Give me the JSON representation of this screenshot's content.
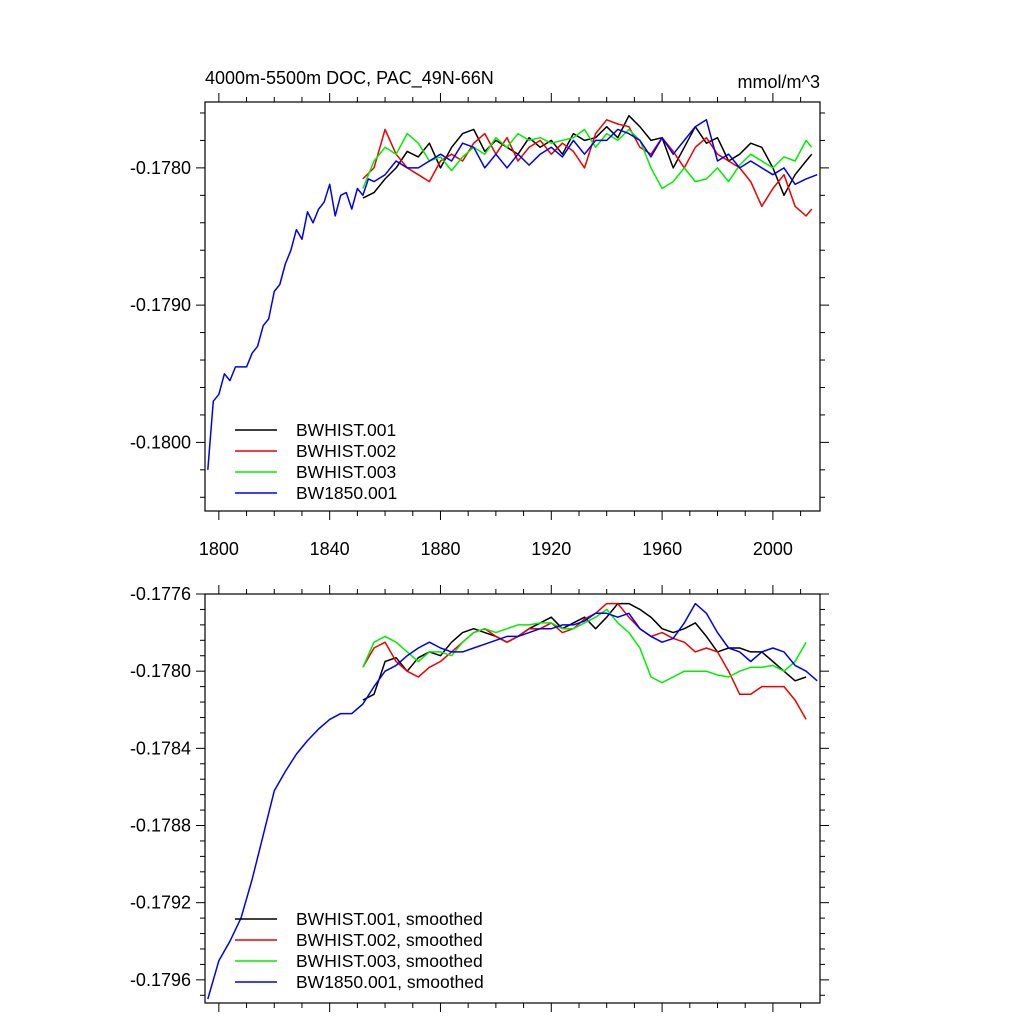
{
  "chart_data": [
    {
      "type": "line",
      "title": "4000m-5500m DOC, PAC_49N-66N",
      "units": "mmol/m^3",
      "xlim": [
        1795,
        2017
      ],
      "ylim": [
        -0.1805,
        -0.17752
      ],
      "x_ticks": [
        1800,
        1840,
        1880,
        1920,
        1960,
        2000
      ],
      "y_ticks": [
        -0.178,
        -0.179,
        -0.18
      ],
      "y_tick_labels": [
        "-0.1780",
        "-0.1790",
        "-0.1800"
      ],
      "x_tick_labels": [
        "1800",
        "1840",
        "1880",
        "1920",
        "1960",
        "2000"
      ],
      "legend": [
        "BWHIST.001",
        "BWHIST.002",
        "BWHIST.003",
        "BW1850.001"
      ],
      "legend_position": "bottom-left",
      "series": [
        {
          "name": "BWHIST.001",
          "color": "#000000",
          "x": [
            1852,
            1856,
            1860,
            1864,
            1868,
            1872,
            1876,
            1880,
            1884,
            1888,
            1892,
            1896,
            1900,
            1904,
            1908,
            1912,
            1916,
            1920,
            1924,
            1928,
            1932,
            1936,
            1940,
            1944,
            1948,
            1952,
            1956,
            1960,
            1964,
            1968,
            1972,
            1976,
            1980,
            1984,
            1988,
            1992,
            1996,
            2000,
            2004,
            2008,
            2012,
            2014
          ],
          "y": [
            -0.17822,
            -0.17818,
            -0.17808,
            -0.178,
            -0.17788,
            -0.17792,
            -0.17782,
            -0.178,
            -0.17785,
            -0.17775,
            -0.17772,
            -0.17788,
            -0.1778,
            -0.17785,
            -0.1779,
            -0.17778,
            -0.17785,
            -0.1778,
            -0.1779,
            -0.17775,
            -0.1778,
            -0.17778,
            -0.1777,
            -0.17778,
            -0.17762,
            -0.1777,
            -0.1778,
            -0.17778,
            -0.178,
            -0.17785,
            -0.1777,
            -0.17782,
            -0.17778,
            -0.17795,
            -0.1779,
            -0.17782,
            -0.17785,
            -0.178,
            -0.1782,
            -0.17805,
            -0.17795,
            -0.1779
          ]
        },
        {
          "name": "BWHIST.002",
          "color": "#ee0000",
          "x": [
            1852,
            1856,
            1860,
            1864,
            1868,
            1872,
            1876,
            1880,
            1884,
            1888,
            1892,
            1896,
            1900,
            1904,
            1908,
            1912,
            1916,
            1920,
            1924,
            1928,
            1932,
            1936,
            1940,
            1944,
            1948,
            1952,
            1956,
            1960,
            1964,
            1968,
            1972,
            1976,
            1980,
            1984,
            1988,
            1992,
            1996,
            2000,
            2004,
            2008,
            2012,
            2014
          ],
          "y": [
            -0.17808,
            -0.178,
            -0.17772,
            -0.1779,
            -0.178,
            -0.17805,
            -0.1781,
            -0.17795,
            -0.1779,
            -0.17795,
            -0.17782,
            -0.17775,
            -0.1779,
            -0.17778,
            -0.17795,
            -0.17785,
            -0.1778,
            -0.1779,
            -0.17782,
            -0.17788,
            -0.178,
            -0.17775,
            -0.17765,
            -0.17768,
            -0.1777,
            -0.17785,
            -0.1779,
            -0.17778,
            -0.17788,
            -0.178,
            -0.17785,
            -0.17778,
            -0.1779,
            -0.17795,
            -0.178,
            -0.1781,
            -0.17828,
            -0.17815,
            -0.17805,
            -0.17828,
            -0.17835,
            -0.1783
          ]
        },
        {
          "name": "BWHIST.003",
          "color": "#00ee00",
          "x": [
            1852,
            1856,
            1860,
            1864,
            1868,
            1872,
            1876,
            1880,
            1884,
            1888,
            1892,
            1896,
            1900,
            1904,
            1908,
            1912,
            1916,
            1920,
            1924,
            1928,
            1932,
            1936,
            1940,
            1944,
            1948,
            1952,
            1956,
            1960,
            1964,
            1968,
            1972,
            1976,
            1980,
            1984,
            1988,
            1992,
            1996,
            2000,
            2004,
            2008,
            2012,
            2014
          ],
          "y": [
            -0.17815,
            -0.17795,
            -0.17785,
            -0.1779,
            -0.17775,
            -0.17782,
            -0.17795,
            -0.17792,
            -0.17802,
            -0.17792,
            -0.17785,
            -0.1779,
            -0.17778,
            -0.17785,
            -0.17775,
            -0.1778,
            -0.17778,
            -0.17782,
            -0.1778,
            -0.17778,
            -0.17772,
            -0.17785,
            -0.17775,
            -0.1778,
            -0.17772,
            -0.1778,
            -0.178,
            -0.17815,
            -0.1781,
            -0.178,
            -0.1781,
            -0.17808,
            -0.178,
            -0.1781,
            -0.17798,
            -0.1779,
            -0.17795,
            -0.178,
            -0.17792,
            -0.17795,
            -0.1778,
            -0.17785
          ]
        },
        {
          "name": "BW1850.001",
          "color": "#0000ee",
          "x": [
            1796,
            1798,
            1800,
            1802,
            1804,
            1806,
            1808,
            1810,
            1812,
            1814,
            1816,
            1818,
            1820,
            1822,
            1824,
            1826,
            1828,
            1830,
            1832,
            1834,
            1836,
            1838,
            1840,
            1842,
            1844,
            1846,
            1848,
            1850,
            1852,
            1854,
            1856,
            1860,
            1864,
            1868,
            1872,
            1876,
            1880,
            1884,
            1888,
            1892,
            1896,
            1900,
            1904,
            1908,
            1912,
            1916,
            1920,
            1924,
            1928,
            1932,
            1936,
            1940,
            1944,
            1948,
            1952,
            1956,
            1960,
            1964,
            1968,
            1972,
            1976,
            1980,
            1984,
            1988,
            1992,
            1996,
            2000,
            2004,
            2008,
            2012,
            2016
          ],
          "y": [
            -0.1802,
            -0.1797,
            -0.17965,
            -0.1795,
            -0.17955,
            -0.17945,
            -0.17945,
            -0.17945,
            -0.17935,
            -0.1793,
            -0.17915,
            -0.1791,
            -0.1789,
            -0.17885,
            -0.1787,
            -0.1786,
            -0.17845,
            -0.17852,
            -0.17832,
            -0.1784,
            -0.1783,
            -0.17825,
            -0.17812,
            -0.17835,
            -0.1782,
            -0.17818,
            -0.1783,
            -0.17815,
            -0.1782,
            -0.17808,
            -0.1781,
            -0.17805,
            -0.17795,
            -0.178,
            -0.178,
            -0.17795,
            -0.1779,
            -0.17795,
            -0.17782,
            -0.17785,
            -0.178,
            -0.1779,
            -0.178,
            -0.1779,
            -0.17798,
            -0.1779,
            -0.17785,
            -0.17792,
            -0.1778,
            -0.1779,
            -0.1778,
            -0.1778,
            -0.17772,
            -0.17775,
            -0.1778,
            -0.17792,
            -0.17778,
            -0.1779,
            -0.1778,
            -0.1777,
            -0.17765,
            -0.17795,
            -0.1779,
            -0.178,
            -0.17795,
            -0.178,
            -0.17805,
            -0.178,
            -0.17812,
            -0.17808,
            -0.17805
          ]
        }
      ]
    },
    {
      "type": "line",
      "title": "",
      "xlim": [
        1795,
        2017
      ],
      "ylim": [
        -0.17972,
        -0.1776
      ],
      "x_ticks": [
        1800,
        1840,
        1880,
        1920,
        1960,
        2000
      ],
      "y_ticks": [
        -0.1776,
        -0.178,
        -0.1784,
        -0.1788,
        -0.1792,
        -0.1796
      ],
      "y_tick_labels": [
        "-0.1776",
        "-0.1780",
        "-0.1784",
        "-0.1788",
        "-0.1792",
        "-0.1796"
      ],
      "legend": [
        "BWHIST.001, smoothed",
        "BWHIST.002, smoothed",
        "BWHIST.003, smoothed",
        "BW1850.001, smoothed"
      ],
      "legend_position": "bottom-left",
      "series": [
        {
          "name": "BWHIST.001, smoothed",
          "color": "#000000",
          "x": [
            1852,
            1856,
            1860,
            1864,
            1868,
            1872,
            1876,
            1880,
            1884,
            1888,
            1892,
            1896,
            1900,
            1904,
            1908,
            1912,
            1916,
            1920,
            1924,
            1928,
            1932,
            1936,
            1940,
            1944,
            1948,
            1952,
            1956,
            1960,
            1964,
            1968,
            1972,
            1976,
            1980,
            1984,
            1988,
            1992,
            1996,
            2000,
            2004,
            2008,
            2012
          ],
          "y": [
            -0.17815,
            -0.17812,
            -0.17795,
            -0.17793,
            -0.178,
            -0.17793,
            -0.1779,
            -0.17792,
            -0.17785,
            -0.1778,
            -0.17778,
            -0.1778,
            -0.17782,
            -0.17785,
            -0.17782,
            -0.17778,
            -0.17775,
            -0.17772,
            -0.17778,
            -0.17775,
            -0.17772,
            -0.17778,
            -0.17772,
            -0.17765,
            -0.17765,
            -0.17768,
            -0.17772,
            -0.17778,
            -0.1778,
            -0.17778,
            -0.17775,
            -0.17782,
            -0.1779,
            -0.17788,
            -0.17788,
            -0.1779,
            -0.1779,
            -0.17795,
            -0.178,
            -0.17805,
            -0.17803
          ]
        },
        {
          "name": "BWHIST.002, smoothed",
          "color": "#ee0000",
          "x": [
            1852,
            1856,
            1860,
            1864,
            1868,
            1872,
            1876,
            1880,
            1884,
            1888,
            1892,
            1896,
            1900,
            1904,
            1908,
            1912,
            1916,
            1920,
            1924,
            1928,
            1932,
            1936,
            1940,
            1944,
            1948,
            1952,
            1956,
            1960,
            1964,
            1968,
            1972,
            1976,
            1980,
            1984,
            1988,
            1992,
            1996,
            2000,
            2004,
            2008,
            2012
          ],
          "y": [
            -0.17798,
            -0.17788,
            -0.17785,
            -0.17795,
            -0.178,
            -0.17803,
            -0.17798,
            -0.17795,
            -0.1779,
            -0.17785,
            -0.1778,
            -0.17778,
            -0.17782,
            -0.17785,
            -0.17782,
            -0.17778,
            -0.17778,
            -0.17775,
            -0.1778,
            -0.17778,
            -0.17773,
            -0.1777,
            -0.17765,
            -0.17765,
            -0.17772,
            -0.17778,
            -0.17782,
            -0.1778,
            -0.17783,
            -0.17785,
            -0.1779,
            -0.17788,
            -0.1779,
            -0.178,
            -0.17812,
            -0.17812,
            -0.17808,
            -0.17808,
            -0.17808,
            -0.17815,
            -0.17825
          ]
        },
        {
          "name": "BWHIST.003, smoothed",
          "color": "#00ee00",
          "x": [
            1852,
            1856,
            1860,
            1864,
            1868,
            1872,
            1876,
            1880,
            1884,
            1888,
            1892,
            1896,
            1900,
            1904,
            1908,
            1912,
            1916,
            1920,
            1924,
            1928,
            1932,
            1936,
            1940,
            1944,
            1948,
            1952,
            1956,
            1960,
            1964,
            1968,
            1972,
            1976,
            1980,
            1984,
            1988,
            1992,
            1996,
            2000,
            2004,
            2008,
            2012
          ],
          "y": [
            -0.17798,
            -0.17785,
            -0.17782,
            -0.17785,
            -0.1779,
            -0.17795,
            -0.1779,
            -0.1779,
            -0.17792,
            -0.17785,
            -0.1778,
            -0.17778,
            -0.1778,
            -0.17778,
            -0.17776,
            -0.17776,
            -0.17775,
            -0.17775,
            -0.17778,
            -0.17778,
            -0.17775,
            -0.17772,
            -0.17768,
            -0.17775,
            -0.1778,
            -0.17788,
            -0.17803,
            -0.17806,
            -0.17803,
            -0.178,
            -0.178,
            -0.178,
            -0.17802,
            -0.17803,
            -0.178,
            -0.17798,
            -0.17798,
            -0.17797,
            -0.178,
            -0.17795,
            -0.17785
          ]
        },
        {
          "name": "BW1850.001, smoothed",
          "color": "#0000ee",
          "x": [
            1796,
            1800,
            1804,
            1808,
            1812,
            1816,
            1820,
            1824,
            1828,
            1832,
            1836,
            1840,
            1844,
            1848,
            1852,
            1856,
            1860,
            1864,
            1868,
            1872,
            1876,
            1880,
            1884,
            1888,
            1892,
            1896,
            1900,
            1904,
            1908,
            1912,
            1916,
            1920,
            1924,
            1928,
            1932,
            1936,
            1940,
            1944,
            1948,
            1952,
            1956,
            1960,
            1964,
            1968,
            1972,
            1976,
            1980,
            1984,
            1988,
            1992,
            1996,
            2000,
            2004,
            2008,
            2012,
            2016
          ],
          "y": [
            -0.1797,
            -0.1795,
            -0.1794,
            -0.17928,
            -0.17908,
            -0.17885,
            -0.17862,
            -0.17852,
            -0.17843,
            -0.17836,
            -0.1783,
            -0.17825,
            -0.17822,
            -0.17822,
            -0.17817,
            -0.17808,
            -0.178,
            -0.17797,
            -0.17792,
            -0.17788,
            -0.17785,
            -0.17788,
            -0.1779,
            -0.1779,
            -0.17788,
            -0.17786,
            -0.17784,
            -0.17782,
            -0.17782,
            -0.1778,
            -0.17778,
            -0.17778,
            -0.17776,
            -0.17776,
            -0.17774,
            -0.1777,
            -0.1777,
            -0.17772,
            -0.1777,
            -0.17778,
            -0.17782,
            -0.17785,
            -0.17783,
            -0.17775,
            -0.17765,
            -0.1777,
            -0.1778,
            -0.17788,
            -0.1779,
            -0.17795,
            -0.1779,
            -0.17788,
            -0.1779,
            -0.17797,
            -0.178,
            -0.17805
          ]
        }
      ]
    }
  ]
}
